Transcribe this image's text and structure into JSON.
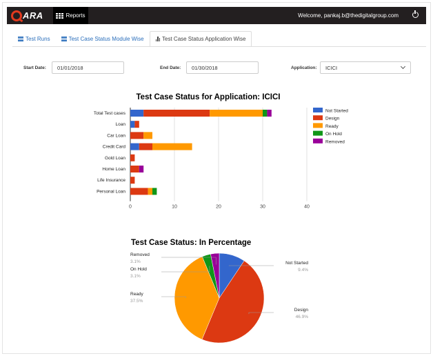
{
  "header": {
    "logo_text": "ARA",
    "reports_label": "Reports",
    "welcome_text": "Welcome, pankaj.b@thedigitalgroup.com"
  },
  "tabs": [
    {
      "label": "Test Runs",
      "active": false
    },
    {
      "label": "Test Case Status Module Wise",
      "active": false
    },
    {
      "label": "Test Case Status Application Wise",
      "active": true
    }
  ],
  "filters": {
    "start_date_label": "Start Date:",
    "start_date_value": "01/01/2018",
    "end_date_label": "End Date:",
    "end_date_value": "01/30/2018",
    "application_label": "Application:",
    "application_value": "ICICI"
  },
  "chart_data": [
    {
      "type": "bar",
      "orientation": "horizontal",
      "stacked": true,
      "title": "Test Case Status for Application: ICICI",
      "categories": [
        "Total Test cases",
        "Loan",
        "Car Loan",
        "Credit Card",
        "Gold Loan",
        "Home Loan",
        "Life Insurance",
        "Personal Loan"
      ],
      "series": [
        {
          "name": "Not Started",
          "color": "#3366cc",
          "values": [
            3,
            1,
            0,
            2,
            0,
            0,
            0,
            0
          ]
        },
        {
          "name": "Design",
          "color": "#dc3912",
          "values": [
            15,
            1,
            3,
            3,
            1,
            2,
            1,
            4
          ]
        },
        {
          "name": "Ready",
          "color": "#ff9900",
          "values": [
            12,
            0,
            2,
            9,
            0,
            0,
            0,
            1
          ]
        },
        {
          "name": "On Hold",
          "color": "#109618",
          "values": [
            1,
            0,
            0,
            0,
            0,
            0,
            0,
            1
          ]
        },
        {
          "name": "Removed",
          "color": "#990099",
          "values": [
            1,
            0,
            0,
            0,
            0,
            1,
            0,
            0
          ]
        }
      ],
      "xlim": [
        0,
        40
      ],
      "xticks": [
        "0",
        "10",
        "20",
        "30",
        "40"
      ],
      "legend": "right"
    },
    {
      "type": "pie",
      "title": "Test Case Status: In Percentage",
      "slices": [
        {
          "name": "Not Started",
          "value": 9.4,
          "label": "9.4%",
          "color": "#3366cc"
        },
        {
          "name": "Design",
          "value": 46.9,
          "label": "46.9%",
          "color": "#dc3912"
        },
        {
          "name": "Ready",
          "value": 37.5,
          "label": "37.5%",
          "color": "#ff9900"
        },
        {
          "name": "On Hold",
          "value": 3.1,
          "label": "3.1%",
          "color": "#109618"
        },
        {
          "name": "Removed",
          "value": 3.1,
          "label": "3.1%",
          "color": "#990099"
        }
      ]
    }
  ]
}
